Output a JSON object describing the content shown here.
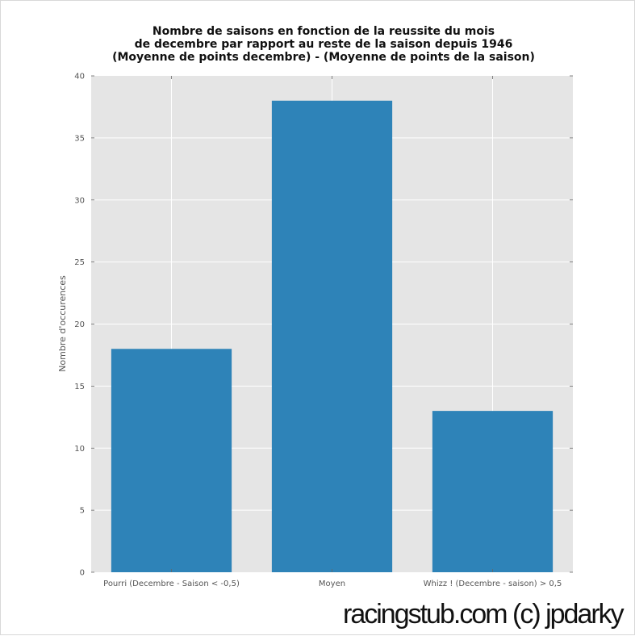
{
  "chart_data": {
    "type": "bar",
    "title": [
      "Nombre de saisons en fonction de la reussite du mois",
      "de decembre par rapport au reste de la saison depuis 1946",
      "(Moyenne de points decembre) - (Moyenne de points de la saison)"
    ],
    "xlabel": "",
    "ylabel": "Nombre d'occurences",
    "categories": [
      "Pourri (Decembre - Saison < -0,5)",
      "Moyen",
      "Whizz ! (Decembre - saison) > 0,5"
    ],
    "values": [
      18,
      38,
      13
    ],
    "ylim": [
      0,
      40
    ],
    "yticks": [
      "0",
      "5",
      "10",
      "15",
      "20",
      "25",
      "30",
      "35",
      "40"
    ],
    "grid": true,
    "colors": {
      "bar": "#2e83b8",
      "plot_background": "#e5e5e5",
      "grid": "#ffffff"
    }
  },
  "watermark": "racingstub.com (c) jpdarky"
}
